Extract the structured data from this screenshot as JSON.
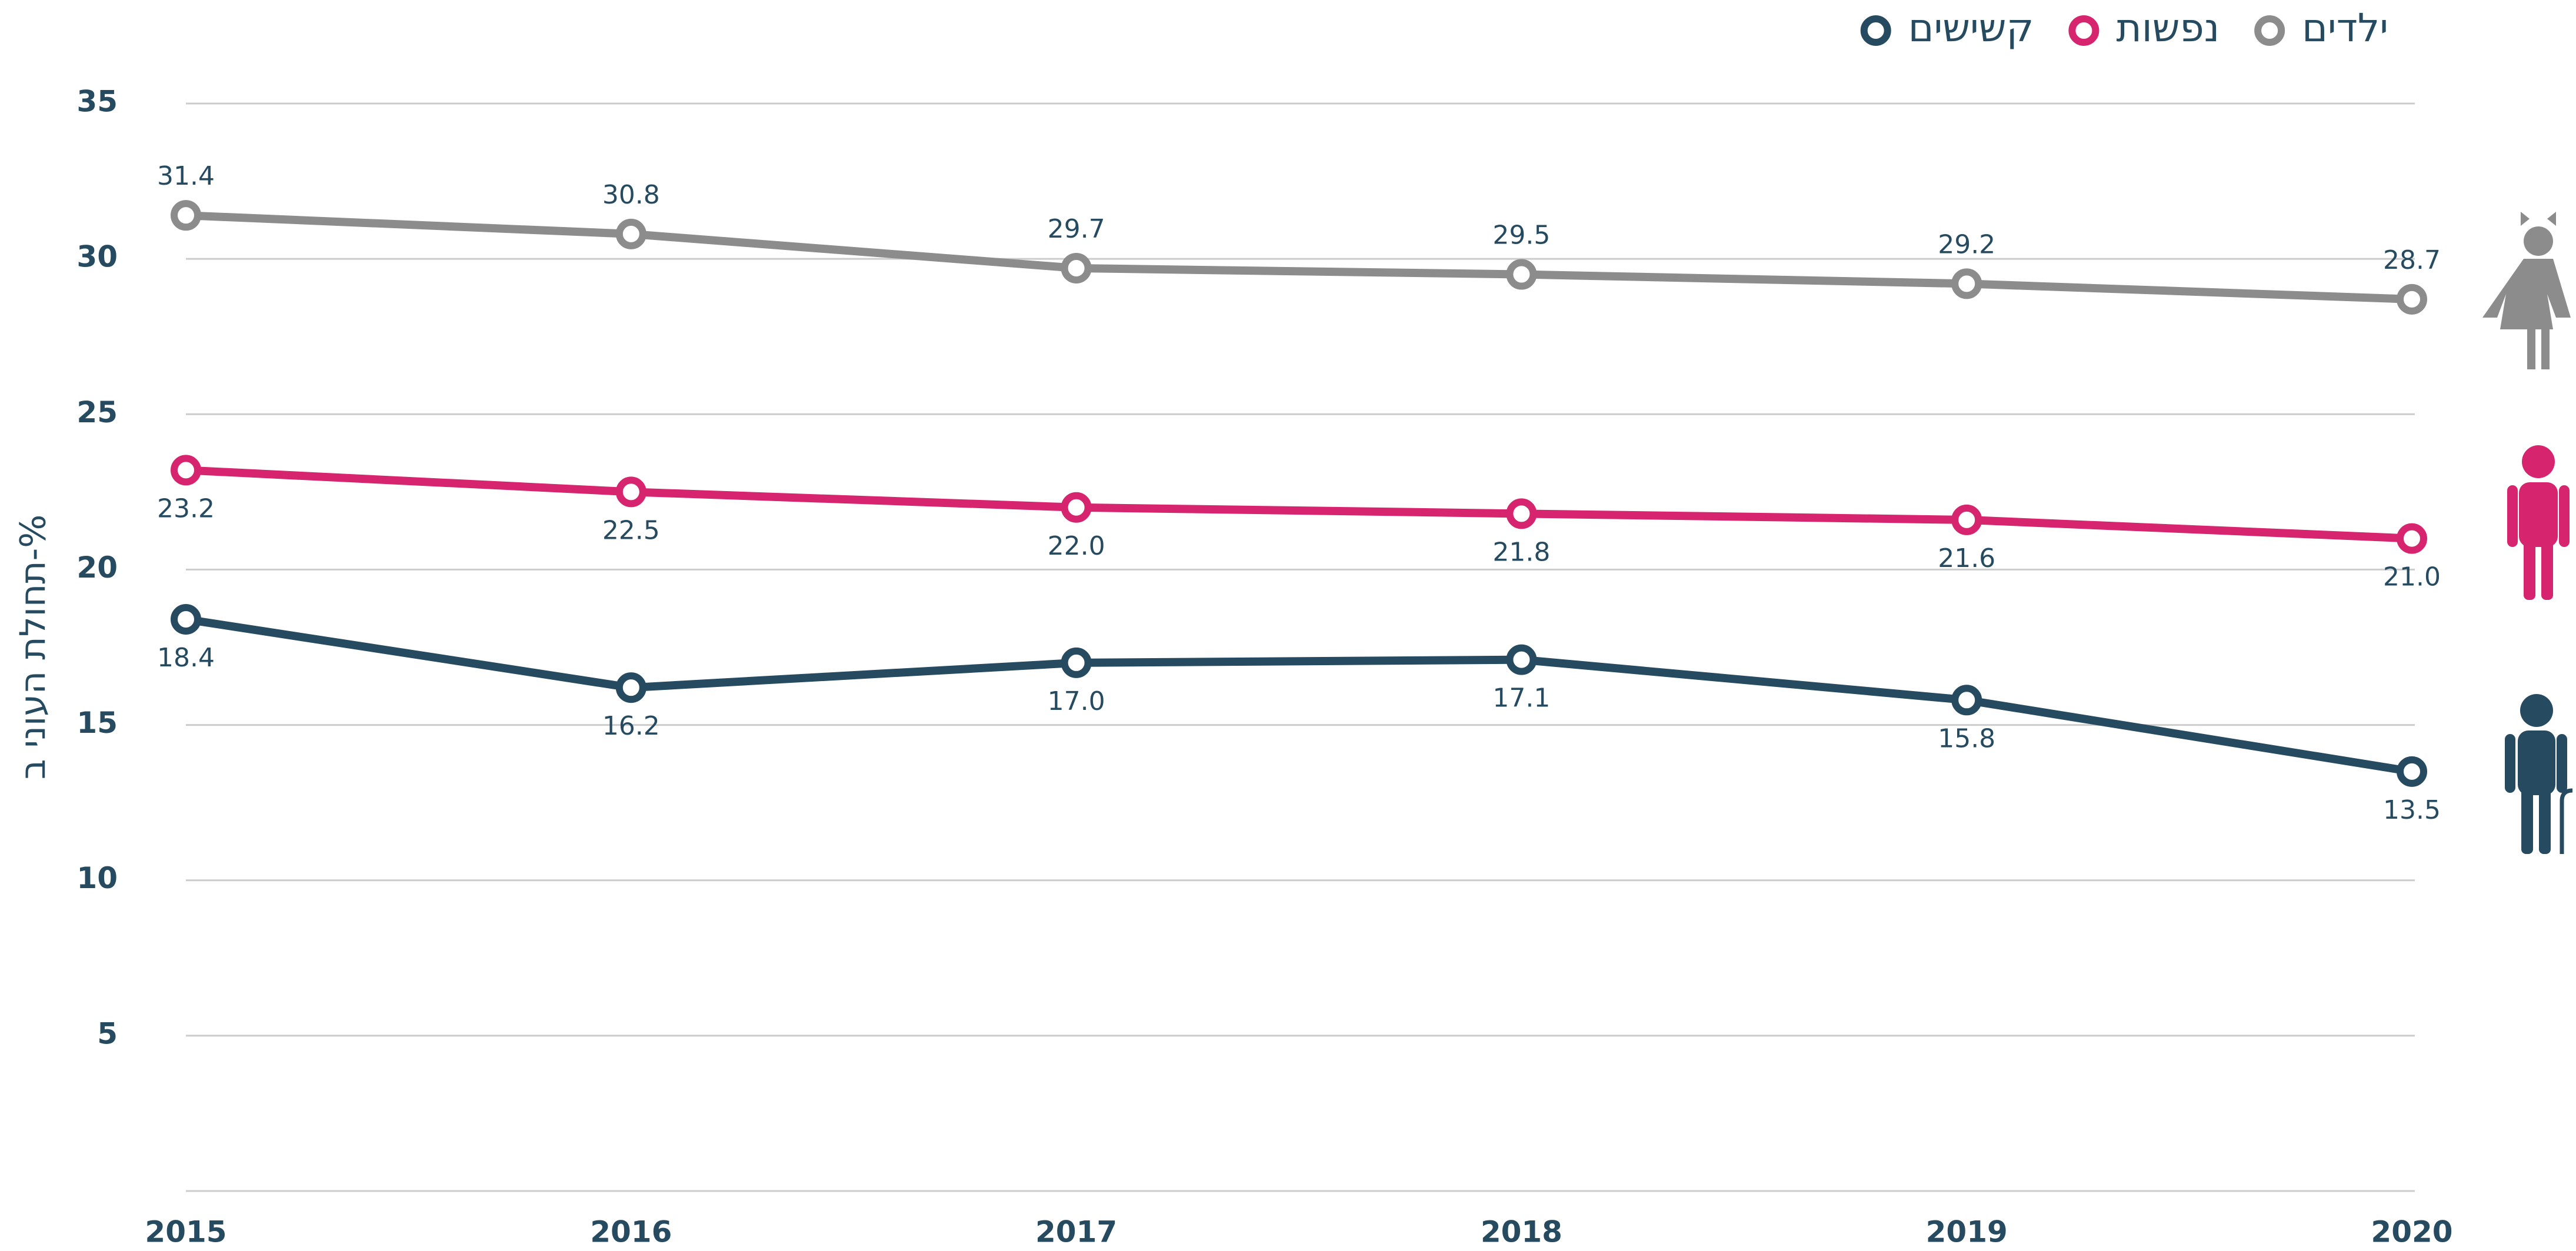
{
  "chart_data": {
    "type": "line",
    "y_label": "תחולת העוני ב-%",
    "categories": [
      "2015",
      "2016",
      "2017",
      "2018",
      "2019",
      "2020"
    ],
    "ylim": [
      0,
      35
    ],
    "yticks": [
      5,
      10,
      15,
      20,
      25,
      30,
      35
    ],
    "grid": true,
    "legend": "top",
    "series": [
      {
        "name": "ילדים",
        "color": "#8c8c8c",
        "values": [
          31.4,
          30.8,
          29.7,
          29.5,
          29.2,
          28.7
        ],
        "value_labels": [
          "31.4",
          "30.8",
          "29.7",
          "29.5",
          "29.2",
          "28.7"
        ]
      },
      {
        "name": "נפשות",
        "color": "#d6246e",
        "values": [
          23.2,
          22.5,
          22.0,
          21.8,
          21.6,
          21.0
        ],
        "value_labels": [
          "23.2",
          "22.5",
          "22.0",
          "21.8",
          "21.6",
          "21.0"
        ]
      },
      {
        "name": "קשישים",
        "color": "#264a60",
        "values": [
          18.4,
          16.2,
          17.0,
          17.1,
          15.8,
          13.5
        ],
        "value_labels": [
          "18.4",
          "16.2",
          "17.0",
          "17.1",
          "15.8",
          "13.5"
        ]
      }
    ]
  }
}
